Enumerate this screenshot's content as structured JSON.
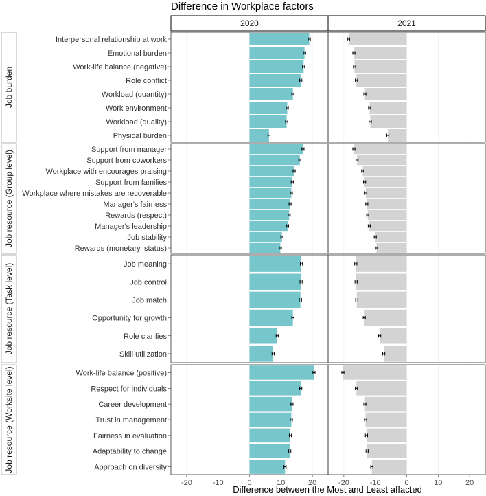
{
  "chart_data": {
    "type": "bar",
    "title": "Difference in Workplace factors",
    "xlabel": "Difference between the Most and Least affacted",
    "ylabel": "",
    "xlim": [
      -25,
      25
    ],
    "x_ticks": [
      -20,
      -10,
      0,
      10,
      20
    ],
    "grid": true,
    "error_bars": true,
    "colors": {
      "2020": "#76c6cc",
      "2021": "#d3d3d3"
    },
    "panels": [
      "2020",
      "2021"
    ],
    "groups": [
      {
        "name": "Job burden",
        "items": [
          {
            "label": "Interpersonal relationship at work",
            "v2020": 19,
            "v2021": -18.5
          },
          {
            "label": "Emotional burden",
            "v2020": 17.5,
            "v2021": -16.8
          },
          {
            "label": "Work-life balance (negative)",
            "v2020": 17.2,
            "v2021": -16.6
          },
          {
            "label": "Role conflict",
            "v2020": 16.3,
            "v2021": -16.0
          },
          {
            "label": "Workload (quantity)",
            "v2020": 13.8,
            "v2021": -13.3
          },
          {
            "label": "Work environment",
            "v2020": 12.0,
            "v2021": -11.8
          },
          {
            "label": "Workload (quality)",
            "v2020": 11.8,
            "v2021": -11.6
          },
          {
            "label": "Physical burden",
            "v2020": 6.2,
            "v2021": -6.0
          }
        ]
      },
      {
        "name": "Job resource (Group level)",
        "items": [
          {
            "label": "Support from manager",
            "v2020": 17.0,
            "v2021": -16.8
          },
          {
            "label": "Support from coworkers",
            "v2020": 16.0,
            "v2021": -15.8
          },
          {
            "label": "Workplace with encourages praising",
            "v2020": 14.2,
            "v2021": -14.0
          },
          {
            "label": "Support from families",
            "v2020": 13.6,
            "v2021": -13.4
          },
          {
            "label": "Workplace where mistakes are recoverable",
            "v2020": 13.3,
            "v2021": -13.0
          },
          {
            "label": "Manager's fairness",
            "v2020": 12.9,
            "v2021": -12.7
          },
          {
            "label": "Rewards (respect)",
            "v2020": 12.6,
            "v2021": -12.4
          },
          {
            "label": "Manager's leadership",
            "v2020": 12.1,
            "v2021": -11.9
          },
          {
            "label": "Job stability",
            "v2020": 10.3,
            "v2021": -10.0
          },
          {
            "label": "Rewards (monetary, status)",
            "v2020": 9.8,
            "v2021": -9.6
          }
        ]
      },
      {
        "name": "Job resource (Task level)",
        "items": [
          {
            "label": "Job meaning",
            "v2020": 16.5,
            "v2021": -16.2
          },
          {
            "label": "Job control",
            "v2020": 16.4,
            "v2021": -16.1
          },
          {
            "label": "Job match",
            "v2020": 16.2,
            "v2021": -15.9
          },
          {
            "label": "Opportunity for growth",
            "v2020": 13.8,
            "v2021": -13.5
          },
          {
            "label": "Role clarifies",
            "v2020": 8.8,
            "v2021": -8.6
          },
          {
            "label": "Skill utilization",
            "v2020": 7.5,
            "v2021": -7.3
          }
        ]
      },
      {
        "name": "Job resource (Worksite level)",
        "items": [
          {
            "label": "Work-life balance (positive)",
            "v2020": 20.5,
            "v2021": -20.3
          },
          {
            "label": "Respect for individuals",
            "v2020": 16.3,
            "v2021": -16.0
          },
          {
            "label": "Career development",
            "v2020": 13.5,
            "v2021": -13.3
          },
          {
            "label": "Trust in management",
            "v2020": 13.3,
            "v2021": -13.1
          },
          {
            "label": "Fairness in evaluation",
            "v2020": 13.0,
            "v2021": -12.8
          },
          {
            "label": "Adaptability to change",
            "v2020": 12.8,
            "v2021": -12.6
          },
          {
            "label": "Approach on diversity",
            "v2020": 11.3,
            "v2021": -11.1
          }
        ]
      }
    ]
  }
}
